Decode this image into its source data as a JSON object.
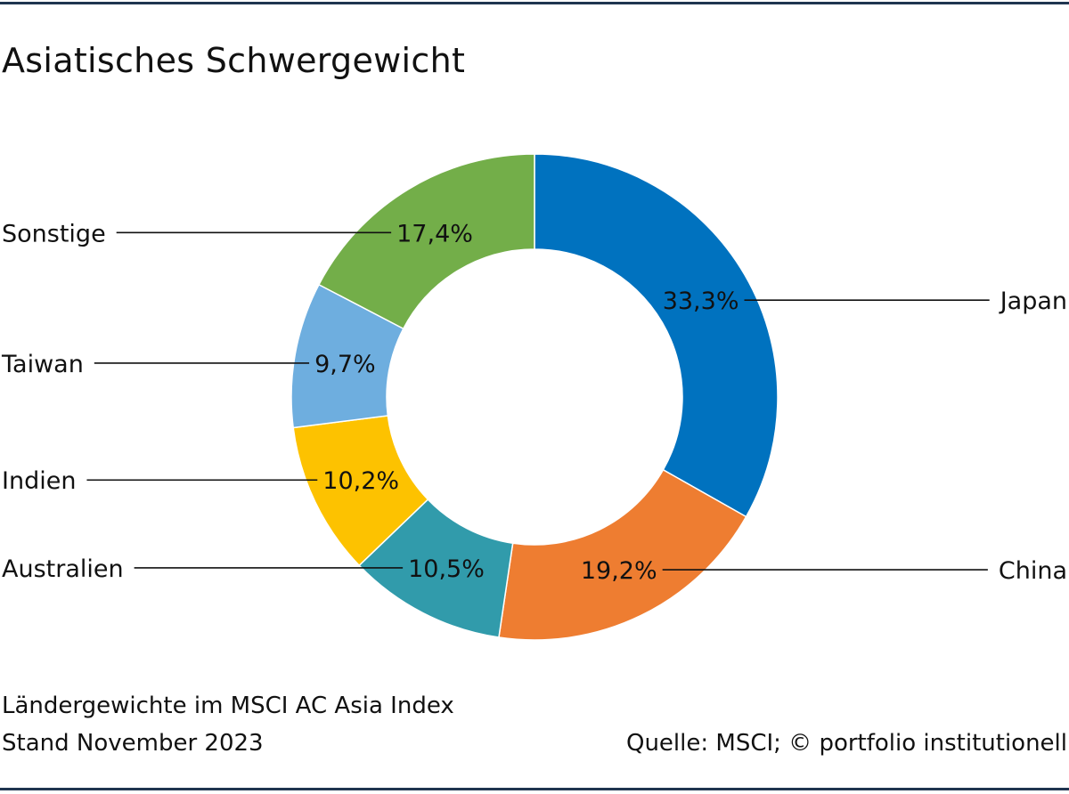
{
  "title": "Asiatisches Schwergewicht",
  "subtitle": "Ländergewichte im MSCI AC Asia Index",
  "date_note": "Stand November 2023",
  "source": "Quelle: MSCI; © portfolio institutionell",
  "chart_data": {
    "type": "pie",
    "variant": "donut",
    "title": "Asiatisches Schwergewicht",
    "unit": "%",
    "slices": [
      {
        "label": "Japan",
        "value": 33.3,
        "value_label": "33,3%",
        "color": "#0072bf",
        "label_side": "right"
      },
      {
        "label": "China",
        "value": 19.2,
        "value_label": "19,2%",
        "color": "#ee7d31",
        "label_side": "right"
      },
      {
        "label": "Australien",
        "value": 10.5,
        "value_label": "10,5%",
        "color": "#319bab",
        "label_side": "left"
      },
      {
        "label": "Indien",
        "value": 10.2,
        "value_label": "10,2%",
        "color": "#fdc200",
        "label_side": "left"
      },
      {
        "label": "Taiwan",
        "value": 9.7,
        "value_label": "9,7%",
        "color": "#6eaedf",
        "label_side": "left"
      },
      {
        "label": "Sonstige",
        "value": 17.4,
        "value_label": "17,4%",
        "color": "#73ae49",
        "label_side": "left"
      }
    ]
  }
}
